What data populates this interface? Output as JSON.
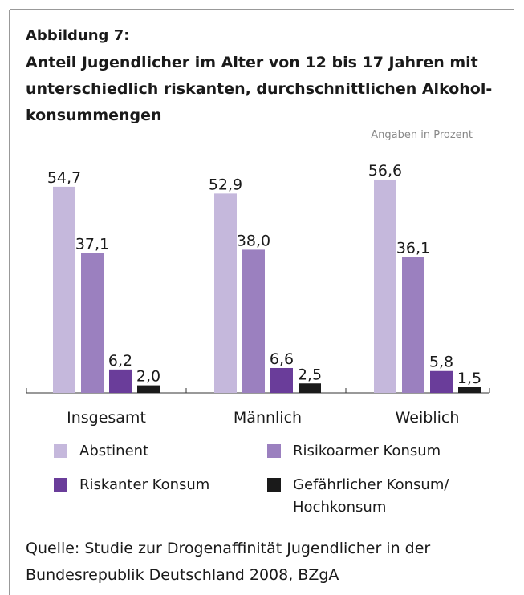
{
  "chart_data": {
    "type": "bar",
    "figure_label": "Abbildung 7:",
    "title": "Anteil Jugendlicher im Alter von 12 bis 17 Jahren mit unterschiedlich riskanten, durchschnittlichen Alkohol-konsummengen",
    "note": "Angaben in Prozent",
    "categories": [
      "Insgesamt",
      "Männlich",
      "Weiblich"
    ],
    "series": [
      {
        "name": "Abstinent",
        "color": "#c5b8dc",
        "values": [
          54.7,
          52.9,
          56.6
        ],
        "value_labels": [
          "54,7",
          "52,9",
          "56,6"
        ]
      },
      {
        "name": "Risikoarmer Konsum",
        "color": "#9b80bf",
        "values": [
          37.1,
          38.0,
          36.1
        ],
        "value_labels": [
          "37,1",
          "38,0",
          "36,1"
        ]
      },
      {
        "name": "Riskanter Konsum",
        "color": "#6a3d9a",
        "values": [
          6.2,
          6.6,
          5.8
        ],
        "value_labels": [
          "6,2",
          "6,6",
          "5,8"
        ]
      },
      {
        "name": "Gefährlicher Konsum/ Hochkonsum",
        "color": "#1a1a1a",
        "values": [
          2.0,
          2.5,
          1.5
        ],
        "value_labels": [
          "2,0",
          "2,5",
          "1,5"
        ]
      }
    ],
    "source": "Quelle: Studie zur Drogenaffinität Jugendlicher in der Bundesrepublik Deutschland 2008, BZgA"
  }
}
